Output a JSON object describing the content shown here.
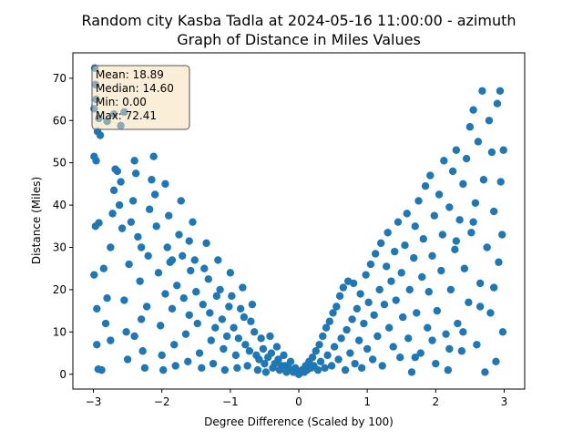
{
  "chart_data": {
    "type": "scatter",
    "title_line1": "Random city Kasba Tadla at 2024-05-16 11:00:00  - azimuth",
    "title_line2": "Graph of Distance in Miles Values",
    "xlabel": "Degree Difference (Scaled by 100)",
    "ylabel": "Distance (Miles)",
    "xlim": [
      -3.3,
      3.3
    ],
    "ylim": [
      -3.5,
      76
    ],
    "xticks": [
      -3,
      -2,
      -1,
      0,
      1,
      2,
      3
    ],
    "yticks": [
      0,
      10,
      20,
      30,
      40,
      50,
      60,
      70
    ],
    "grid": false,
    "marker_color": "#1f77b4",
    "stats_box": {
      "lines": [
        "Mean: 18.89",
        "Median: 14.60",
        "Min: 0.00",
        "Max: 72.41"
      ],
      "facecolor": "#f5deb3",
      "edgecolor": "#555555"
    },
    "series": [
      {
        "points": [
          [
            -2.98,
            72.4
          ],
          [
            -2.97,
            68.5
          ],
          [
            -2.96,
            65.0
          ],
          [
            -2.99,
            62.8
          ],
          [
            -2.92,
            60.5
          ],
          [
            -2.94,
            57.4
          ],
          [
            -2.9,
            56.5
          ],
          [
            -2.8,
            59.8
          ],
          [
            -2.7,
            61.5
          ],
          [
            -2.6,
            58.8
          ],
          [
            -2.55,
            62.0
          ],
          [
            -2.99,
            51.5
          ],
          [
            -2.96,
            50.5
          ],
          [
            -2.97,
            35.0
          ],
          [
            -2.92,
            35.8
          ],
          [
            -2.99,
            23.5
          ],
          [
            -2.95,
            7.0
          ],
          [
            -2.93,
            1.2
          ],
          [
            -2.88,
            1.0
          ],
          [
            -2.85,
            25.0
          ],
          [
            -2.8,
            18.0
          ],
          [
            -2.82,
            12.0
          ],
          [
            -2.75,
            30.0
          ],
          [
            -2.72,
            38.0
          ],
          [
            -2.7,
            43.5
          ],
          [
            -2.68,
            48.5
          ],
          [
            -2.65,
            48.0
          ],
          [
            -2.62,
            40.0
          ],
          [
            -2.6,
            45.5
          ],
          [
            -2.58,
            34.5
          ],
          [
            -2.55,
            17.5
          ],
          [
            -2.52,
            10.0
          ],
          [
            -2.5,
            3.5
          ],
          [
            -2.48,
            26.0
          ],
          [
            -2.45,
            36.0
          ],
          [
            -2.42,
            41.0
          ],
          [
            -2.4,
            50.5
          ],
          [
            -2.38,
            47.5
          ],
          [
            -2.35,
            32.5
          ],
          [
            -2.32,
            22.0
          ],
          [
            -2.3,
            13.0
          ],
          [
            -2.28,
            5.5
          ],
          [
            -2.25,
            1.5
          ],
          [
            -2.22,
            16.0
          ],
          [
            -2.2,
            28.0
          ],
          [
            -2.18,
            39.0
          ],
          [
            -2.15,
            46.0
          ],
          [
            -2.12,
            51.5
          ],
          [
            -2.1,
            42.5
          ],
          [
            -2.08,
            35.0
          ],
          [
            -2.05,
            24.0
          ],
          [
            -2.02,
            11.5
          ],
          [
            -2.0,
            4.5
          ],
          [
            -1.98,
            1.0
          ],
          [
            -1.95,
            19.0
          ],
          [
            -1.92,
            30.0
          ],
          [
            -1.9,
            37.5
          ],
          [
            -1.88,
            26.5
          ],
          [
            -1.85,
            15.5
          ],
          [
            -1.82,
            7.0
          ],
          [
            -1.8,
            2.0
          ],
          [
            -1.78,
            21.0
          ],
          [
            -1.75,
            33.0
          ],
          [
            -1.72,
            41.0
          ],
          [
            -1.7,
            28.0
          ],
          [
            -1.68,
            18.0
          ],
          [
            -1.65,
            9.5
          ],
          [
            -1.62,
            3.0
          ],
          [
            -1.6,
            14.0
          ],
          [
            -1.58,
            24.5
          ],
          [
            -1.55,
            36.0
          ],
          [
            -1.52,
            27.0
          ],
          [
            -1.5,
            19.5
          ],
          [
            -1.48,
            12.0
          ],
          [
            -1.45,
            5.0
          ],
          [
            -1.42,
            1.5
          ],
          [
            -1.4,
            16.5
          ],
          [
            -1.38,
            25.0
          ],
          [
            -1.35,
            31.0
          ],
          [
            -1.32,
            22.5
          ],
          [
            -1.3,
            14.5
          ],
          [
            -1.28,
            8.0
          ],
          [
            -1.25,
            2.5
          ],
          [
            -1.22,
            11.0
          ],
          [
            -1.2,
            18.5
          ],
          [
            -1.18,
            27.0
          ],
          [
            -1.15,
            20.0
          ],
          [
            -1.12,
            13.0
          ],
          [
            -1.1,
            6.0
          ],
          [
            -1.08,
            1.0
          ],
          [
            -1.05,
            9.0
          ],
          [
            -1.02,
            16.0
          ],
          [
            -1.0,
            24.0
          ],
          [
            -0.98,
            18.5
          ],
          [
            -0.95,
            11.0
          ],
          [
            -0.92,
            4.5
          ],
          [
            -0.9,
            1.5
          ],
          [
            -0.88,
            8.5
          ],
          [
            -0.85,
            15.5
          ],
          [
            -0.82,
            20.5
          ],
          [
            -0.8,
            13.5
          ],
          [
            -0.78,
            7.0
          ],
          [
            -0.75,
            2.0
          ],
          [
            -0.72,
            5.5
          ],
          [
            -0.7,
            12.5
          ],
          [
            -0.68,
            16.5
          ],
          [
            -0.65,
            10.0
          ],
          [
            -0.62,
            4.5
          ],
          [
            -0.6,
            1.0
          ],
          [
            -0.58,
            3.5
          ],
          [
            -0.55,
            8.5
          ],
          [
            -0.52,
            6.0
          ],
          [
            -0.5,
            2.5
          ],
          [
            -0.48,
            0.5
          ],
          [
            -0.45,
            4.0
          ],
          [
            -0.42,
            9.0
          ],
          [
            -0.4,
            5.0
          ],
          [
            -0.38,
            1.5
          ],
          [
            -0.35,
            2.5
          ],
          [
            -0.32,
            6.5
          ],
          [
            -0.3,
            3.5
          ],
          [
            -0.28,
            1.0
          ],
          [
            -0.25,
            2.0
          ],
          [
            -0.22,
            4.5
          ],
          [
            -0.2,
            2.0
          ],
          [
            -0.18,
            0.5
          ],
          [
            -0.15,
            1.5
          ],
          [
            -0.12,
            3.0
          ],
          [
            -0.1,
            1.0
          ],
          [
            -0.08,
            0.5
          ],
          [
            -0.05,
            1.5
          ],
          [
            -0.02,
            0.5
          ],
          [
            0.0,
            0.0
          ],
          [
            -2.95,
            15.5
          ],
          [
            -2.4,
            9.0
          ],
          [
            -1.95,
            45.0
          ],
          [
            -1.6,
            31.5
          ],
          [
            -2.75,
            8.0
          ],
          [
            -2.3,
            30.0
          ],
          [
            -1.85,
            27.0
          ],
          [
            0.02,
            0.5
          ],
          [
            0.05,
            1.0
          ],
          [
            0.08,
            0.5
          ],
          [
            0.1,
            2.0
          ],
          [
            0.12,
            1.0
          ],
          [
            0.15,
            3.0
          ],
          [
            0.18,
            1.5
          ],
          [
            0.2,
            4.0
          ],
          [
            0.22,
            2.0
          ],
          [
            0.25,
            5.5
          ],
          [
            0.28,
            1.0
          ],
          [
            0.3,
            7.0
          ],
          [
            0.32,
            3.0
          ],
          [
            0.35,
            9.0
          ],
          [
            0.38,
            1.5
          ],
          [
            0.4,
            11.0
          ],
          [
            0.42,
            4.5
          ],
          [
            0.45,
            12.5
          ],
          [
            0.48,
            2.0
          ],
          [
            0.5,
            14.5
          ],
          [
            0.52,
            6.5
          ],
          [
            0.55,
            16.0
          ],
          [
            0.58,
            3.5
          ],
          [
            0.6,
            18.5
          ],
          [
            0.62,
            8.5
          ],
          [
            0.65,
            20.5
          ],
          [
            0.68,
            1.0
          ],
          [
            0.7,
            10.5
          ],
          [
            0.72,
            22.0
          ],
          [
            0.75,
            5.0
          ],
          [
            0.78,
            13.0
          ],
          [
            0.8,
            21.5
          ],
          [
            0.82,
            2.5
          ],
          [
            0.85,
            15.5
          ],
          [
            0.88,
            8.0
          ],
          [
            0.9,
            19.0
          ],
          [
            0.92,
            1.5
          ],
          [
            0.95,
            12.0
          ],
          [
            0.98,
            23.5
          ],
          [
            1.0,
            6.0
          ],
          [
            1.02,
            17.0
          ],
          [
            1.05,
            26.0
          ],
          [
            1.08,
            3.5
          ],
          [
            1.1,
            14.0
          ],
          [
            1.12,
            28.5
          ],
          [
            1.15,
            9.0
          ],
          [
            1.18,
            20.0
          ],
          [
            1.2,
            31.0
          ],
          [
            1.22,
            2.0
          ],
          [
            1.25,
            16.5
          ],
          [
            1.28,
            25.5
          ],
          [
            1.3,
            33.5
          ],
          [
            1.32,
            11.0
          ],
          [
            1.35,
            22.0
          ],
          [
            1.38,
            6.5
          ],
          [
            1.4,
            29.0
          ],
          [
            1.42,
            17.5
          ],
          [
            1.45,
            36.0
          ],
          [
            1.48,
            4.0
          ],
          [
            1.5,
            24.0
          ],
          [
            1.52,
            13.5
          ],
          [
            1.55,
            30.5
          ],
          [
            1.58,
            38.0
          ],
          [
            1.6,
            8.5
          ],
          [
            1.62,
            20.0
          ],
          [
            1.65,
            0.5
          ],
          [
            1.68,
            27.5
          ],
          [
            1.7,
            35.0
          ],
          [
            1.72,
            14.5
          ],
          [
            1.75,
            41.0
          ],
          [
            1.78,
            5.0
          ],
          [
            1.8,
            23.0
          ],
          [
            1.82,
            32.0
          ],
          [
            1.85,
            44.5
          ],
          [
            1.88,
            11.0
          ],
          [
            1.9,
            19.5
          ],
          [
            1.92,
            47.0
          ],
          [
            1.95,
            28.0
          ],
          [
            1.98,
            37.5
          ],
          [
            2.0,
            2.5
          ],
          [
            2.02,
            15.0
          ],
          [
            2.05,
            42.5
          ],
          [
            2.08,
            24.5
          ],
          [
            2.1,
            33.0
          ],
          [
            2.12,
            50.5
          ],
          [
            2.15,
            9.5
          ],
          [
            2.18,
            1.0
          ],
          [
            2.2,
            39.5
          ],
          [
            2.22,
            20.0
          ],
          [
            2.25,
            48.0
          ],
          [
            2.28,
            29.5
          ],
          [
            2.3,
            53.0
          ],
          [
            2.32,
            12.0
          ],
          [
            2.35,
            36.5
          ],
          [
            2.38,
            5.5
          ],
          [
            2.4,
            45.0
          ],
          [
            2.42,
            25.0
          ],
          [
            2.45,
            51.0
          ],
          [
            2.48,
            17.0
          ],
          [
            2.5,
            58.5
          ],
          [
            2.52,
            33.5
          ],
          [
            2.55,
            62.5
          ],
          [
            2.58,
            40.5
          ],
          [
            2.6,
            7.0
          ],
          [
            2.62,
            55.0
          ],
          [
            2.65,
            21.5
          ],
          [
            2.68,
            67.0
          ],
          [
            2.7,
            46.0
          ],
          [
            2.72,
            0.5
          ],
          [
            2.75,
            30.0
          ],
          [
            2.78,
            60.0
          ],
          [
            2.8,
            14.5
          ],
          [
            2.82,
            52.5
          ],
          [
            2.85,
            38.5
          ],
          [
            2.88,
            3.0
          ],
          [
            2.9,
            64.0
          ],
          [
            2.92,
            26.5
          ],
          [
            2.94,
            67.0
          ],
          [
            2.95,
            45.5
          ],
          [
            2.97,
            33.0
          ],
          [
            2.98,
            10.0
          ],
          [
            2.99,
            53.0
          ],
          [
            2.4,
            10.0
          ],
          [
            2.2,
            6.0
          ],
          [
            1.95,
            8.0
          ],
          [
            1.7,
            4.0
          ],
          [
            2.65,
            16.0
          ],
          [
            2.85,
            20.5
          ],
          [
            2.55,
            36.0
          ],
          [
            2.3,
            31.5
          ]
        ]
      }
    ]
  }
}
